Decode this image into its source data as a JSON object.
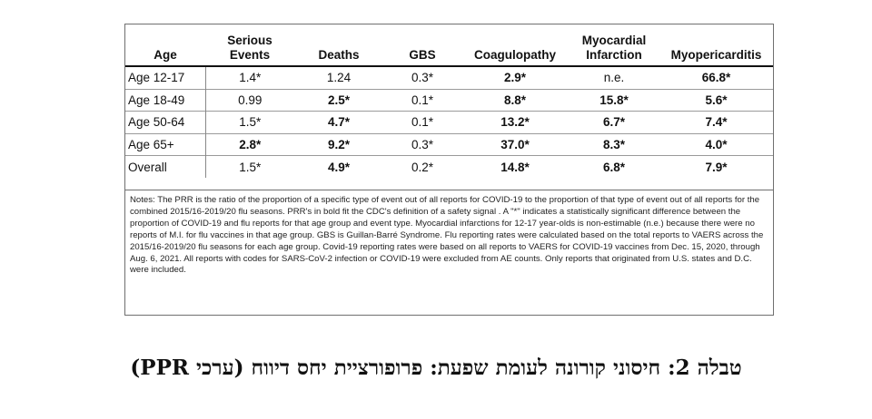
{
  "table": {
    "headers": [
      {
        "line1": "",
        "line2": "Age"
      },
      {
        "line1": "Serious",
        "line2": "Events"
      },
      {
        "line1": "",
        "line2": "Deaths"
      },
      {
        "line1": "",
        "line2": "GBS"
      },
      {
        "line1": "",
        "line2": "Coagulopathy"
      },
      {
        "line1": "Myocardial",
        "line2": "Infarction"
      },
      {
        "line1": "",
        "line2": "Myopericarditis"
      }
    ],
    "rows": [
      {
        "cells": [
          {
            "text": "Age 12-17",
            "bold": false
          },
          {
            "text": "1.4*",
            "bold": false
          },
          {
            "text": "1.24",
            "bold": false
          },
          {
            "text": "0.3*",
            "bold": false
          },
          {
            "text": "2.9*",
            "bold": true
          },
          {
            "text": "n.e.",
            "bold": false
          },
          {
            "text": "66.8*",
            "bold": true
          }
        ]
      },
      {
        "cells": [
          {
            "text": "Age 18-49",
            "bold": false
          },
          {
            "text": "0.99",
            "bold": false
          },
          {
            "text": "2.5*",
            "bold": true
          },
          {
            "text": "0.1*",
            "bold": false
          },
          {
            "text": "8.8*",
            "bold": true
          },
          {
            "text": "15.8*",
            "bold": true
          },
          {
            "text": "5.6*",
            "bold": true
          }
        ]
      },
      {
        "cells": [
          {
            "text": "Age 50-64",
            "bold": false
          },
          {
            "text": "1.5*",
            "bold": false
          },
          {
            "text": "4.7*",
            "bold": true
          },
          {
            "text": "0.1*",
            "bold": false
          },
          {
            "text": "13.2*",
            "bold": true
          },
          {
            "text": "6.7*",
            "bold": true
          },
          {
            "text": "7.4*",
            "bold": true
          }
        ]
      },
      {
        "cells": [
          {
            "text": "Age 65+",
            "bold": false
          },
          {
            "text": "2.8*",
            "bold": true
          },
          {
            "text": "9.2*",
            "bold": true
          },
          {
            "text": "0.3*",
            "bold": false
          },
          {
            "text": "37.0*",
            "bold": true
          },
          {
            "text": "8.3*",
            "bold": true
          },
          {
            "text": "4.0*",
            "bold": true
          }
        ]
      },
      {
        "cells": [
          {
            "text": "Overall",
            "bold": false
          },
          {
            "text": "1.5*",
            "bold": false
          },
          {
            "text": "4.9*",
            "bold": true
          },
          {
            "text": "0.2*",
            "bold": false
          },
          {
            "text": "14.8*",
            "bold": true
          },
          {
            "text": "6.8*",
            "bold": true
          },
          {
            "text": "7.9*",
            "bold": true
          }
        ]
      }
    ]
  },
  "notes": "Notes: The PRR is the ratio of the proportion of a specific type of event out of all reports for COVID-19 to the proportion of that type of event out of all reports for the combined 2015/16-2019/20 flu seasons. PRR's in bold fit the CDC's definition of a safety signal . A \"*\" indicates a statistically significant difference between the proportion of COVID-19 and flu reports for that age group and event type.  Myocardial infarctions for 12-17 year-olds is non-estimable (n.e.) because there were no reports of M.I. for flu vaccines in that age group. GBS is Guillan-Barré Syndrome. Flu reporting rates were calculated based on the total reports to VAERS across the 2015/16-2019/20 flu seasons for each age group. Covid-19 reporting rates were based on all reports to VAERS for COVID-19 vaccines from Dec. 15, 2020, through Aug. 6, 2021.  All reports with codes for SARS-CoV-2 infection or COVID-19 were excluded from AE counts. Only reports that originated from U.S. states and D.C. were included.",
  "caption": "טבלה 2: חיסוני קורונה לעומת שפעת: פרופורציית יחס דיווח (ערכי PPR)"
}
